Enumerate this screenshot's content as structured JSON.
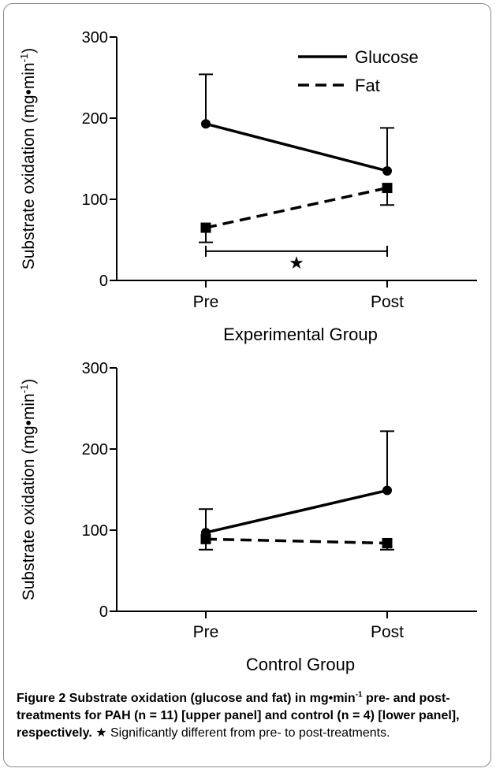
{
  "panels": [
    {
      "chart_data": {
        "type": "line",
        "ylabel": "Substrate oxidation (mg•min-1)",
        "ylabel_text": "Substrate oxidation (mg•min",
        "ylabel_sup": "-1",
        "ylabel_close": ")",
        "xlabel": "Experimental Group",
        "categories": [
          "Pre",
          "Post"
        ],
        "ylim": [
          0,
          300
        ],
        "yticks": [
          0,
          100,
          200,
          300
        ],
        "series": [
          {
            "name": "Glucose",
            "values": [
              193,
              135
            ],
            "error_up": [
              254,
              188
            ],
            "style": "solid",
            "marker": "circle"
          },
          {
            "name": "Fat",
            "values": [
              65,
              114
            ],
            "error_down": [
              47,
              93
            ],
            "style": "dashed",
            "marker": "square"
          }
        ],
        "legend": "top-right",
        "significance": {
          "from": "Pre",
          "to": "Post",
          "y": 36,
          "symbol": "★"
        }
      }
    },
    {
      "chart_data": {
        "type": "line",
        "ylabel": "Substrate oxidation (mg•min-1)",
        "ylabel_text": "Substrate oxidation (mg•min",
        "ylabel_sup": "-1",
        "ylabel_close": ")",
        "xlabel": "Control Group",
        "categories": [
          "Pre",
          "Post"
        ],
        "ylim": [
          0,
          300
        ],
        "yticks": [
          0,
          100,
          200,
          300
        ],
        "series": [
          {
            "name": "Glucose",
            "values": [
              97,
              149
            ],
            "error_up": [
              126,
              222
            ],
            "style": "solid",
            "marker": "circle"
          },
          {
            "name": "Fat",
            "values": [
              89,
              84
            ],
            "error_down": [
              76,
              76
            ],
            "style": "dashed",
            "marker": "square"
          }
        ]
      }
    }
  ],
  "caption": {
    "bold_a": "Figure 2 Substrate oxidation (glucose and fat) in mg•min",
    "bold_sup": "-1",
    "bold_b": " pre- and post-treatments for PAH (n = 11) [upper panel] and control (n = 4) [lower panel], respectively.",
    "star": " ★ ",
    "plain": "Significantly different from pre- to post-treatments."
  }
}
